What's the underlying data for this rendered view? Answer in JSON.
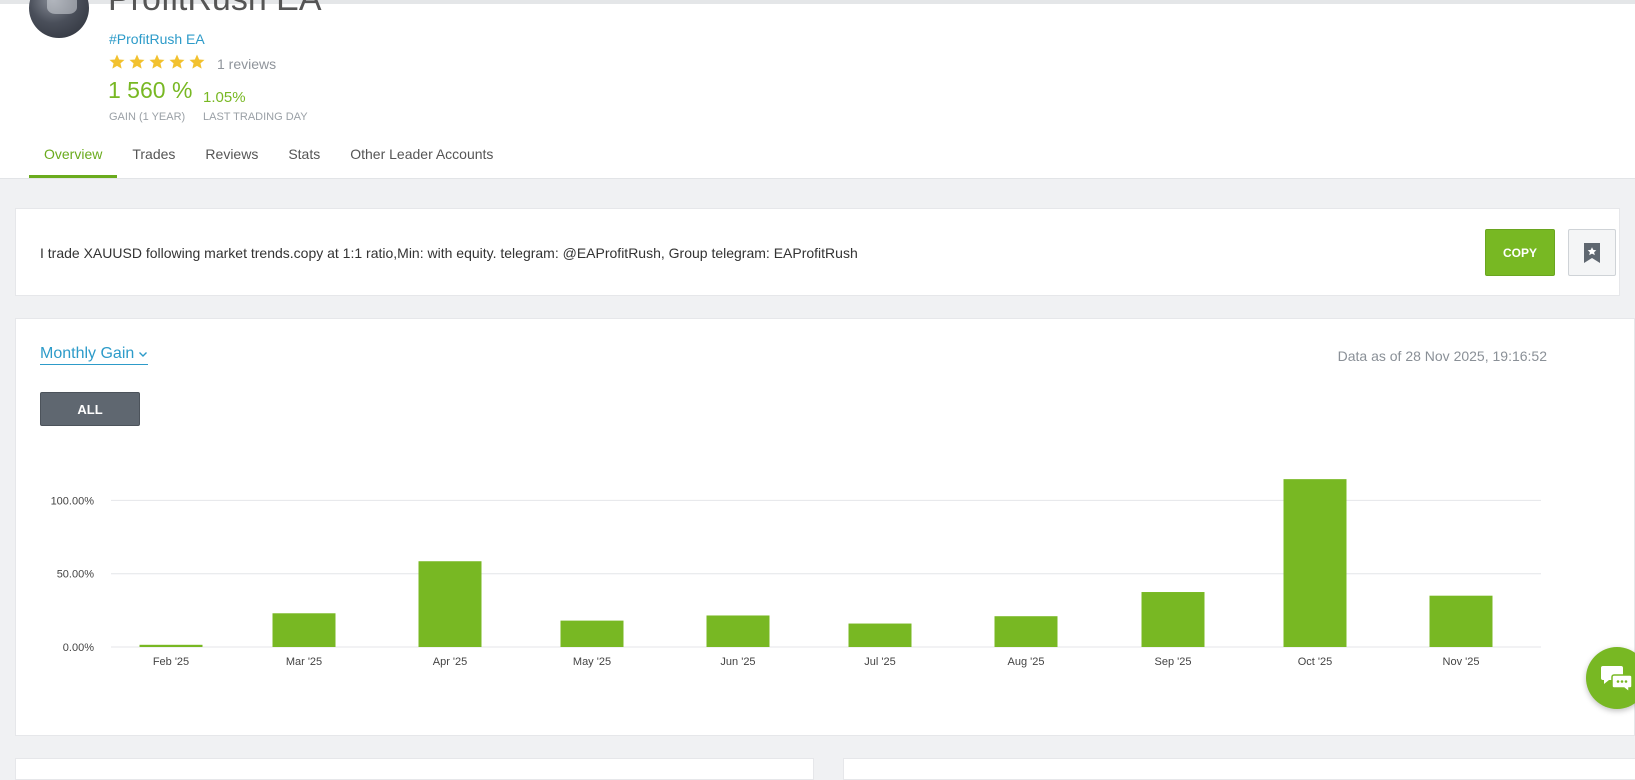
{
  "header": {
    "account_name": "ProfitRush EA",
    "hashtag": "#ProfitRush EA",
    "rating": 5,
    "reviews": "1 reviews",
    "gain_value": "1 560 %",
    "gain_label": "GAIN (1 YEAR)",
    "last_value": "1.05%",
    "last_label": "LAST TRADING DAY"
  },
  "tabs": [
    {
      "label": "Overview",
      "active": true
    },
    {
      "label": "Trades"
    },
    {
      "label": "Reviews"
    },
    {
      "label": "Stats"
    },
    {
      "label": "Other Leader Accounts"
    }
  ],
  "description": {
    "text": "I trade XAUUSD following market trends.copy at 1:1 ratio,Min: with equity. telegram: @EAProfitRush, Group telegram: EAProfitRush",
    "copy_label": "COPY",
    "bookmark_icon": "bookmark-icon"
  },
  "chart_section": {
    "selector_label": "Monthly Gain",
    "data_asof": "Data as of 28 Nov 2025, 19:16:52",
    "range_button": "ALL"
  },
  "colors": {
    "accent_green": "#78b823",
    "link_blue": "#2d9bc9",
    "star_yellow": "#f2c12e",
    "button_gray": "#5f6770"
  },
  "chart_data": {
    "type": "bar",
    "categories": [
      "Feb '25",
      "Mar '25",
      "Apr '25",
      "May '25",
      "Jun '25",
      "Jul '25",
      "Aug '25",
      "Sep '25",
      "Oct '25",
      "Nov '25"
    ],
    "values": [
      1.5,
      23.0,
      58.5,
      18.0,
      21.5,
      16.0,
      21.0,
      37.5,
      114.5,
      35.0
    ],
    "yticks": [
      "0.00%",
      "50.00%",
      "100.00%"
    ],
    "ytick_values": [
      0,
      50,
      100
    ],
    "ylim": [
      0,
      120
    ],
    "grid": true,
    "bar_color": "#78b823",
    "title": "",
    "xlabel": "",
    "ylabel": ""
  }
}
